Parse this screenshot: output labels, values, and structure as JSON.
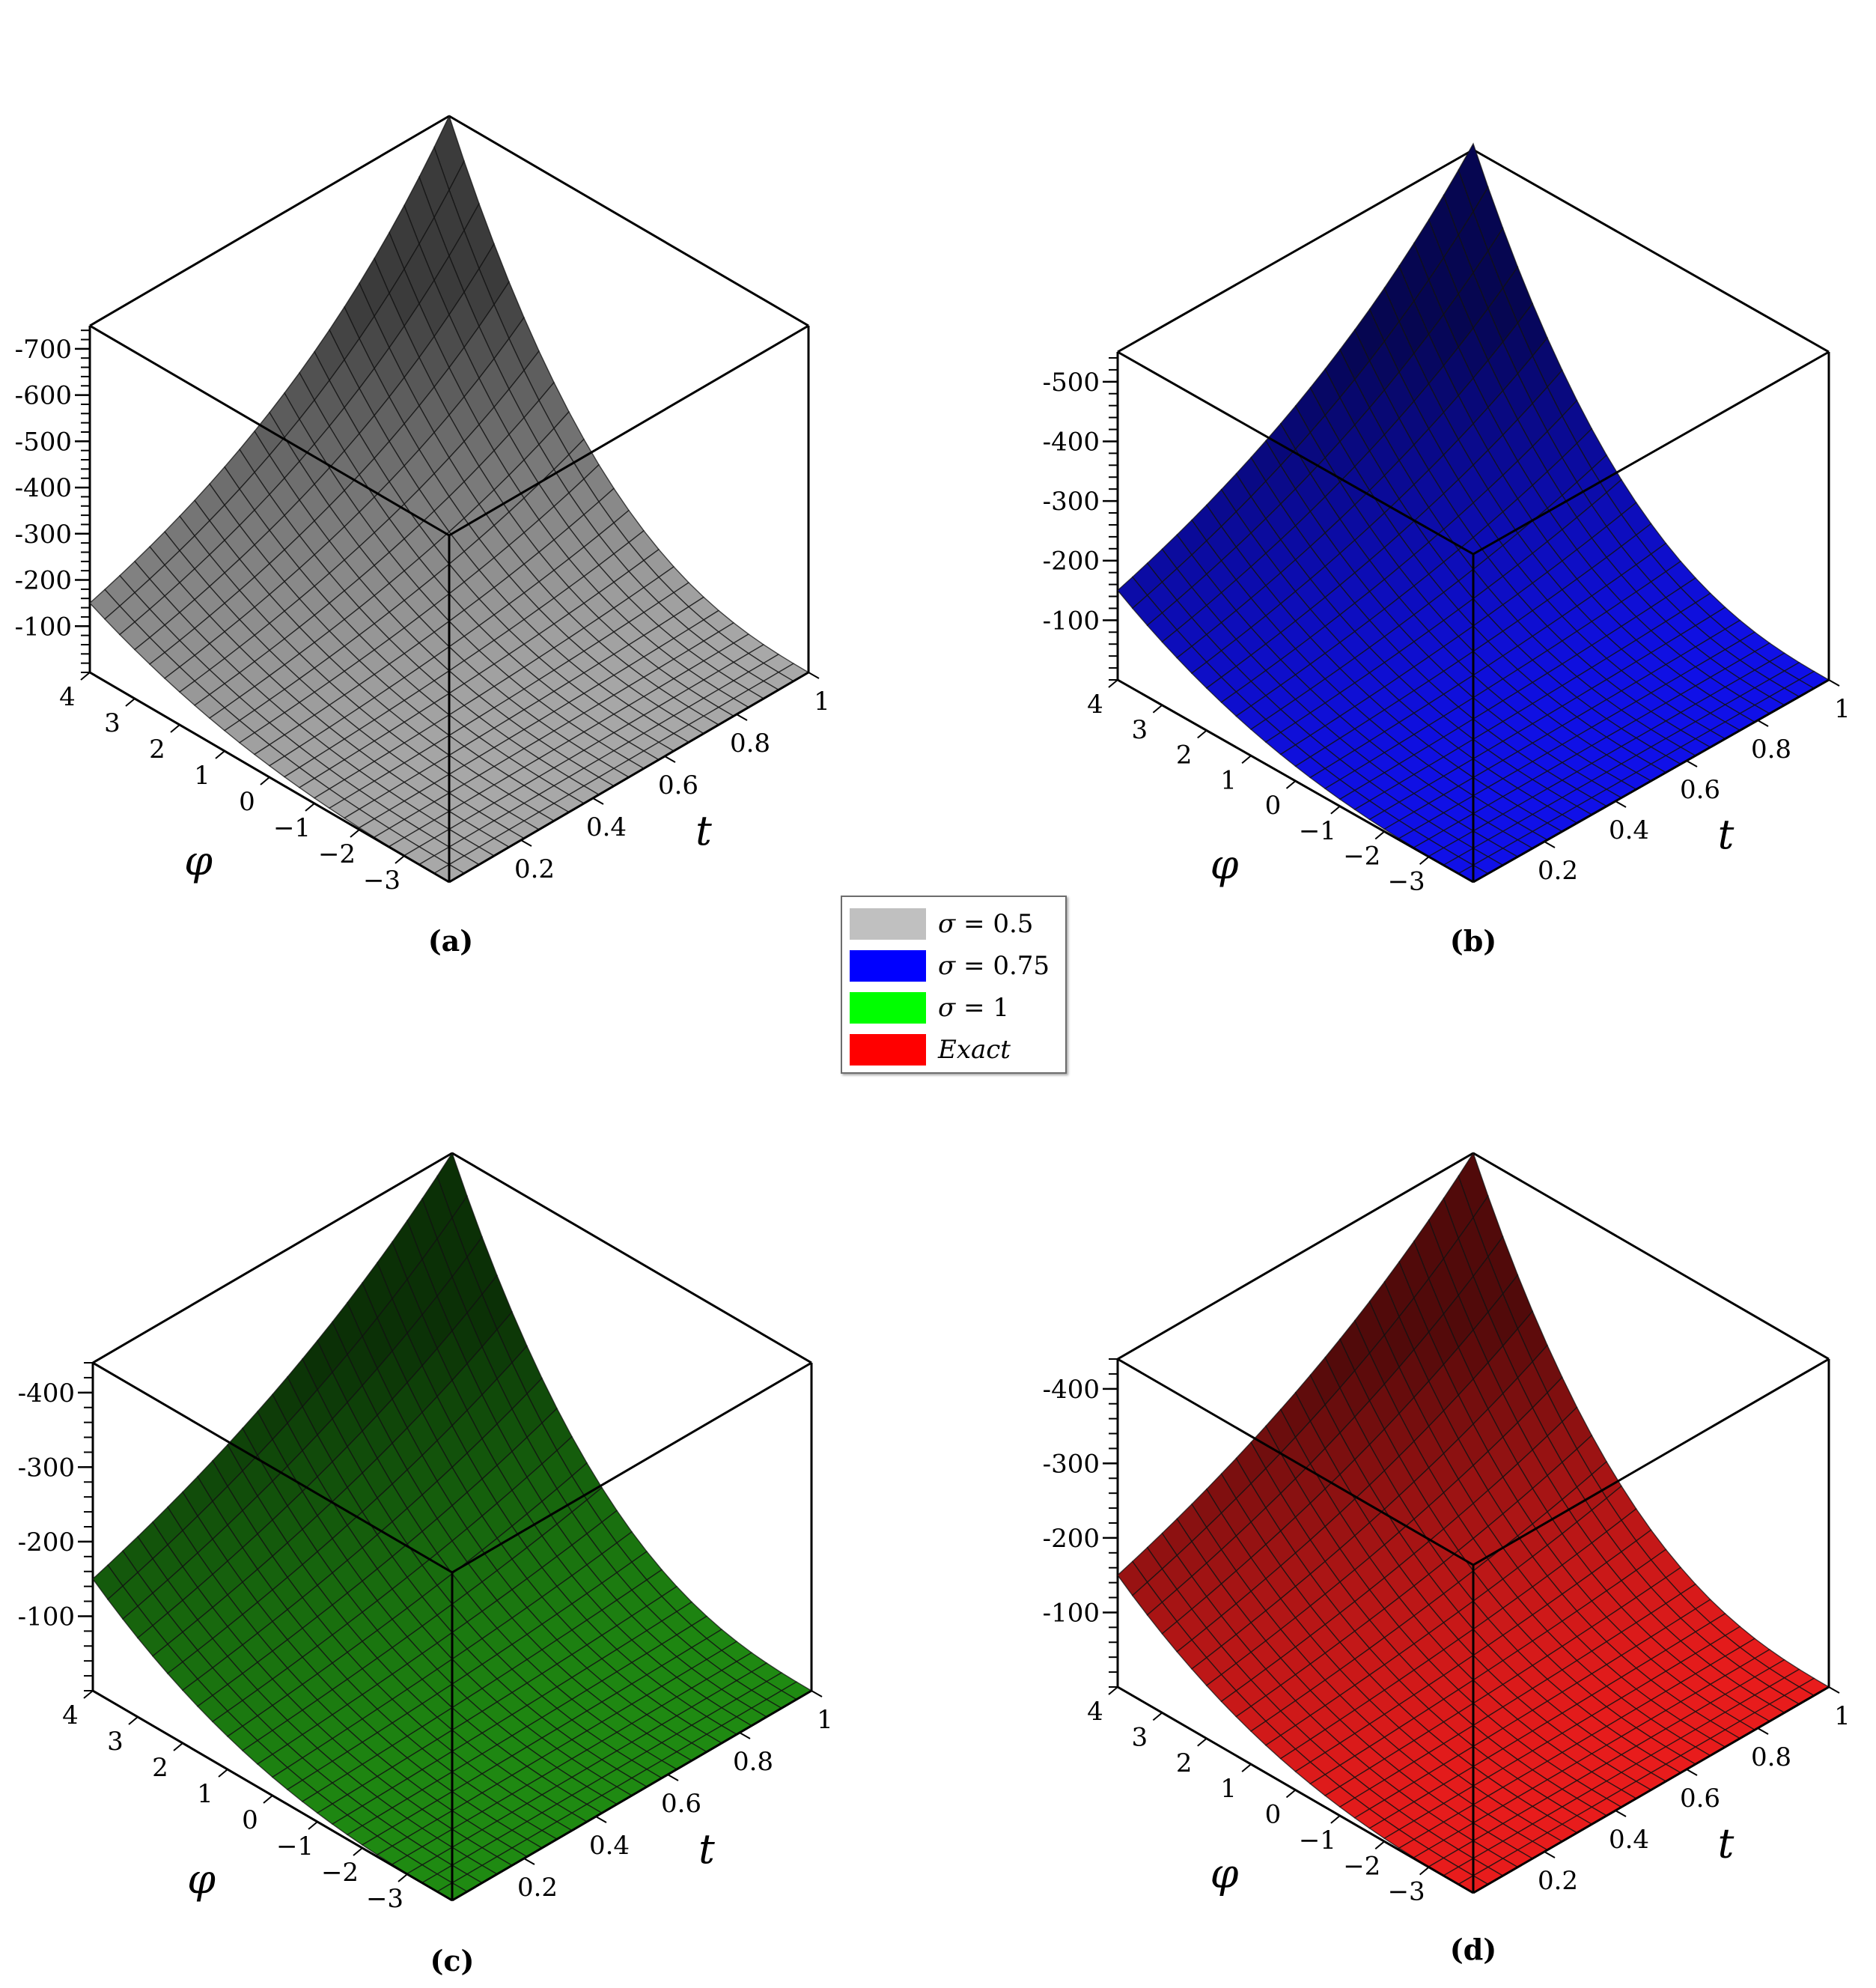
{
  "chart_data": [
    {
      "type": "surface3d",
      "panel_label": "(a)",
      "color": "#a8a8a8",
      "xlabel": "t",
      "ylabel": "φ",
      "zlabel": "",
      "xlim": [
        0,
        1
      ],
      "ylim": [
        -4,
        4
      ],
      "zlim": [
        -750,
        0
      ],
      "x_ticks": [
        "0.2",
        "0.4",
        "0.6",
        "0.8",
        "1"
      ],
      "y_ticks": [
        "4",
        "3",
        "2",
        "1",
        "0",
        "−1",
        "−2",
        "−3"
      ],
      "z_ticks": [
        "-100",
        "-200",
        "-300",
        "-400",
        "-500",
        "-600",
        "-700"
      ],
      "series_name": "σ = 0.5",
      "sample_values": {
        "t": [
          0,
          0.25,
          0.5,
          0.75,
          1
        ],
        "phi_4": [
          -150,
          -210,
          -320,
          -480,
          -750
        ],
        "phi_minus_4": [
          0,
          -2,
          -5,
          -10,
          -20
        ]
      }
    },
    {
      "type": "surface3d",
      "panel_label": "(b)",
      "color": "#1010e8",
      "xlabel": "t",
      "ylabel": "φ",
      "zlabel": "",
      "xlim": [
        0,
        1
      ],
      "ylim": [
        -4,
        4
      ],
      "zlim": [
        -550,
        0
      ],
      "x_ticks": [
        "0.2",
        "0.4",
        "0.6",
        "0.8",
        "1"
      ],
      "y_ticks": [
        "4",
        "3",
        "2",
        "1",
        "0",
        "−1",
        "−2",
        "−3"
      ],
      "z_ticks": [
        "-100",
        "-200",
        "-300",
        "-400",
        "-500"
      ],
      "series_name": "σ = 0.75",
      "sample_values": {
        "t": [
          0,
          0.25,
          0.5,
          0.75,
          1
        ],
        "phi_4": [
          -150,
          -200,
          -280,
          -400,
          -560
        ],
        "phi_minus_4": [
          0,
          -2,
          -4,
          -8,
          -15
        ]
      }
    },
    {
      "type": "surface3d",
      "panel_label": "(c)",
      "color": "#1f8a12",
      "xlabel": "t",
      "ylabel": "φ",
      "zlabel": "",
      "xlim": [
        0,
        1
      ],
      "ylim": [
        -4,
        4
      ],
      "zlim": [
        -440,
        0
      ],
      "x_ticks": [
        "0.2",
        "0.4",
        "0.6",
        "0.8",
        "1"
      ],
      "y_ticks": [
        "4",
        "3",
        "2",
        "1",
        "0",
        "−1",
        "−2",
        "−3"
      ],
      "z_ticks": [
        "-100",
        "-200",
        "-300",
        "-400"
      ],
      "series_name": "σ = 1",
      "sample_values": {
        "t": [
          0,
          0.25,
          0.5,
          0.75,
          1
        ],
        "phi_4": [
          -150,
          -190,
          -250,
          -330,
          -440
        ],
        "phi_minus_4": [
          0,
          -1,
          -3,
          -6,
          -12
        ]
      }
    },
    {
      "type": "surface3d",
      "panel_label": "(d)",
      "color": "#e81c1c",
      "xlabel": "t",
      "ylabel": "φ",
      "zlabel": "",
      "xlim": [
        0,
        1
      ],
      "ylim": [
        -4,
        4
      ],
      "zlim": [
        -440,
        0
      ],
      "x_ticks": [
        "0.2",
        "0.4",
        "0.6",
        "0.8",
        "1"
      ],
      "y_ticks": [
        "4",
        "3",
        "2",
        "1",
        "0",
        "−1",
        "−2",
        "−3"
      ],
      "z_ticks": [
        "-100",
        "-200",
        "-300",
        "-400"
      ],
      "series_name": "Exact",
      "sample_values": {
        "t": [
          0,
          0.25,
          0.5,
          0.75,
          1
        ],
        "phi_4": [
          -150,
          -190,
          -250,
          -330,
          -440
        ],
        "phi_minus_4": [
          0,
          -1,
          -3,
          -6,
          -12
        ]
      }
    }
  ],
  "legend": {
    "placement": "center",
    "items": [
      {
        "symbol": "σ",
        "text": " = 0.5",
        "color": "#c0c0c0"
      },
      {
        "symbol": "σ",
        "text": " = 0.75",
        "color": "#0000ff"
      },
      {
        "symbol": "σ",
        "text": " = 1",
        "color": "#00ff00"
      },
      {
        "symbol": "",
        "text": "Exact",
        "color": "#ff0000",
        "italic": true
      }
    ]
  }
}
